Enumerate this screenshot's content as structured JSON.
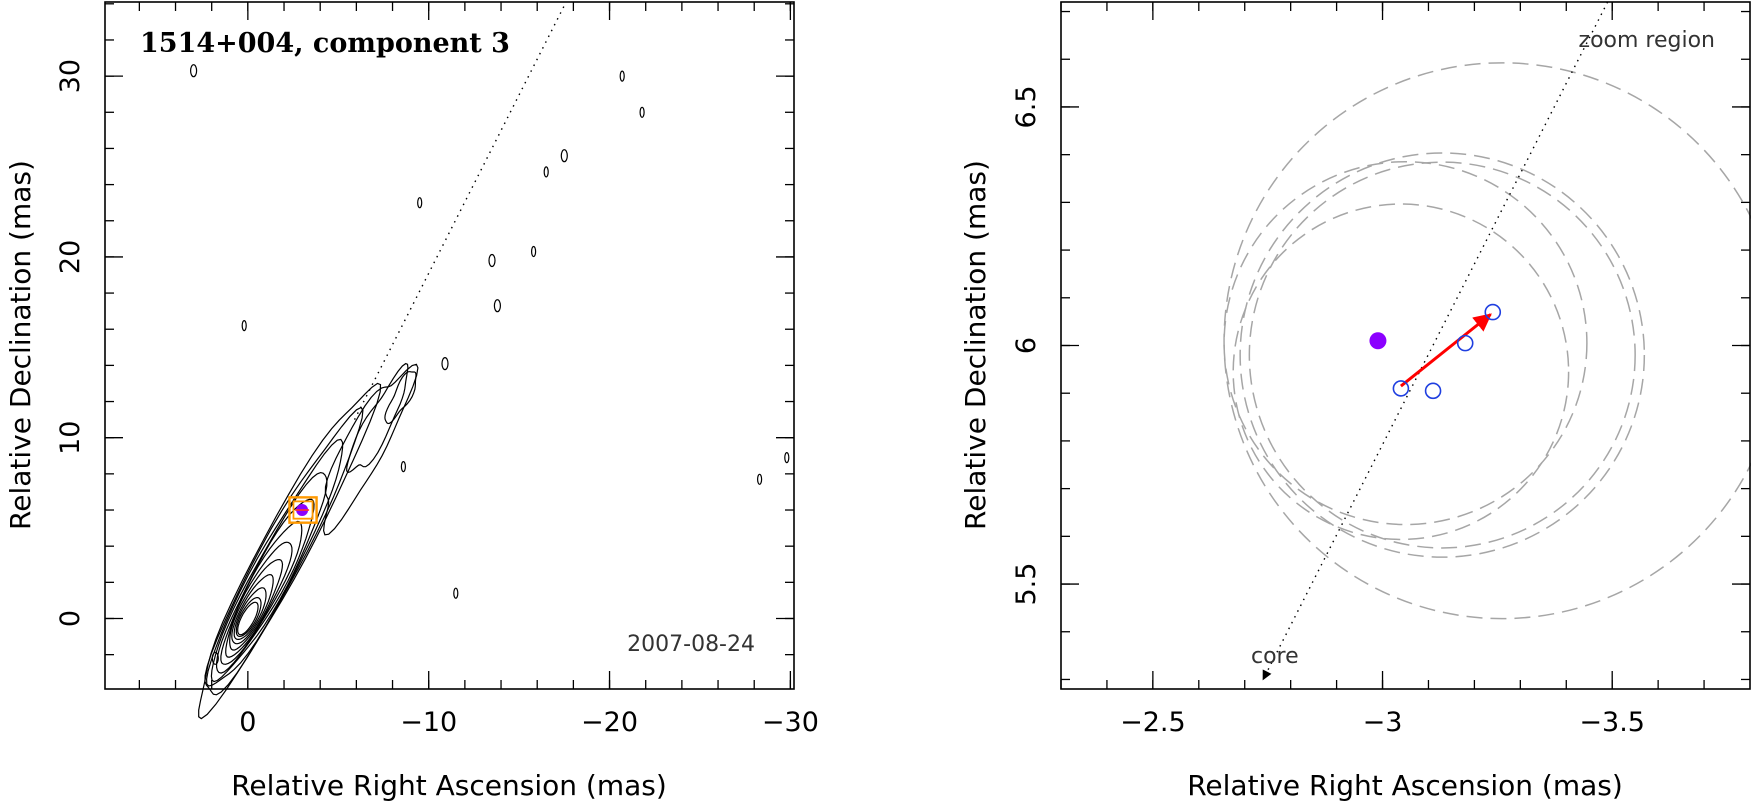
{
  "chart_data": [
    {
      "type": "contour",
      "title": "1514+004, component 3",
      "epoch_label": "2007-08-24",
      "xlabel": "Relative Right Ascension (mas)",
      "ylabel": "Relative Declination (mas)",
      "xlim": [
        7.9,
        -30.2
      ],
      "ylim": [
        -3.9,
        34.1
      ],
      "xticks": [
        0,
        -10,
        -20,
        -30
      ],
      "xtick_labels": [
        "0",
        "−10",
        "−20",
        "−30"
      ],
      "yticks": [
        0,
        10,
        20,
        30
      ],
      "ytick_labels": [
        "0",
        "10",
        "20",
        "30"
      ],
      "jet_direction_line": {
        "from": [
          -5.9,
          11.0
        ],
        "to": [
          -17.6,
          34.1
        ]
      },
      "component": {
        "ra": -3.0,
        "dec": 6.0,
        "color": "#8b00ff"
      },
      "zoom_box": {
        "ra_range": [
          -2.3,
          -3.8
        ],
        "dec_range": [
          5.3,
          6.7
        ],
        "color": "#ff9900"
      },
      "contour_levels": 12
    },
    {
      "type": "scatter",
      "xlabel": "Relative Right Ascension (mas)",
      "ylabel": "Relative Declination (mas)",
      "xlim": [
        -2.3,
        -3.8
      ],
      "ylim": [
        5.28,
        6.72
      ],
      "xticks": [
        -2.5,
        -3,
        -3.5
      ],
      "xtick_labels": [
        "−2.5",
        "−3",
        "−3.5"
      ],
      "yticks": [
        5.5,
        6,
        6.5
      ],
      "ytick_labels": [
        "5.5",
        "6",
        "6.5"
      ],
      "zoom_label": "zoom region",
      "core_label": "core",
      "reference_position": {
        "ra": -2.99,
        "dec": 6.01,
        "color": "#8b00ff"
      },
      "epoch_positions": [
        {
          "ra": -3.04,
          "dec": 5.91
        },
        {
          "ra": -3.11,
          "dec": 5.905
        },
        {
          "ra": -3.18,
          "dec": 6.005
        },
        {
          "ra": -3.24,
          "dec": 6.07
        }
      ],
      "epoch_marker_color": "#1f3fe0",
      "motion_vector": {
        "from": [
          -3.04,
          5.915
        ],
        "to": [
          -3.235,
          6.065
        ],
        "color": "#ff0000"
      },
      "beam_circles": [
        {
          "ra": -3.04,
          "dec": 5.945,
          "r": 0.365
        },
        {
          "ra": -3.05,
          "dec": 6.005,
          "r": 0.395
        },
        {
          "ra": -3.13,
          "dec": 5.98,
          "r": 0.42
        },
        {
          "ra": -3.13,
          "dec": 5.98,
          "r": 0.44
        },
        {
          "ra": -3.26,
          "dec": 6.01,
          "r": 0.605
        }
      ],
      "jet_direction_line": {
        "from": [
          -2.74,
          5.3
        ],
        "to": [
          -3.49,
          6.72
        ]
      }
    }
  ]
}
